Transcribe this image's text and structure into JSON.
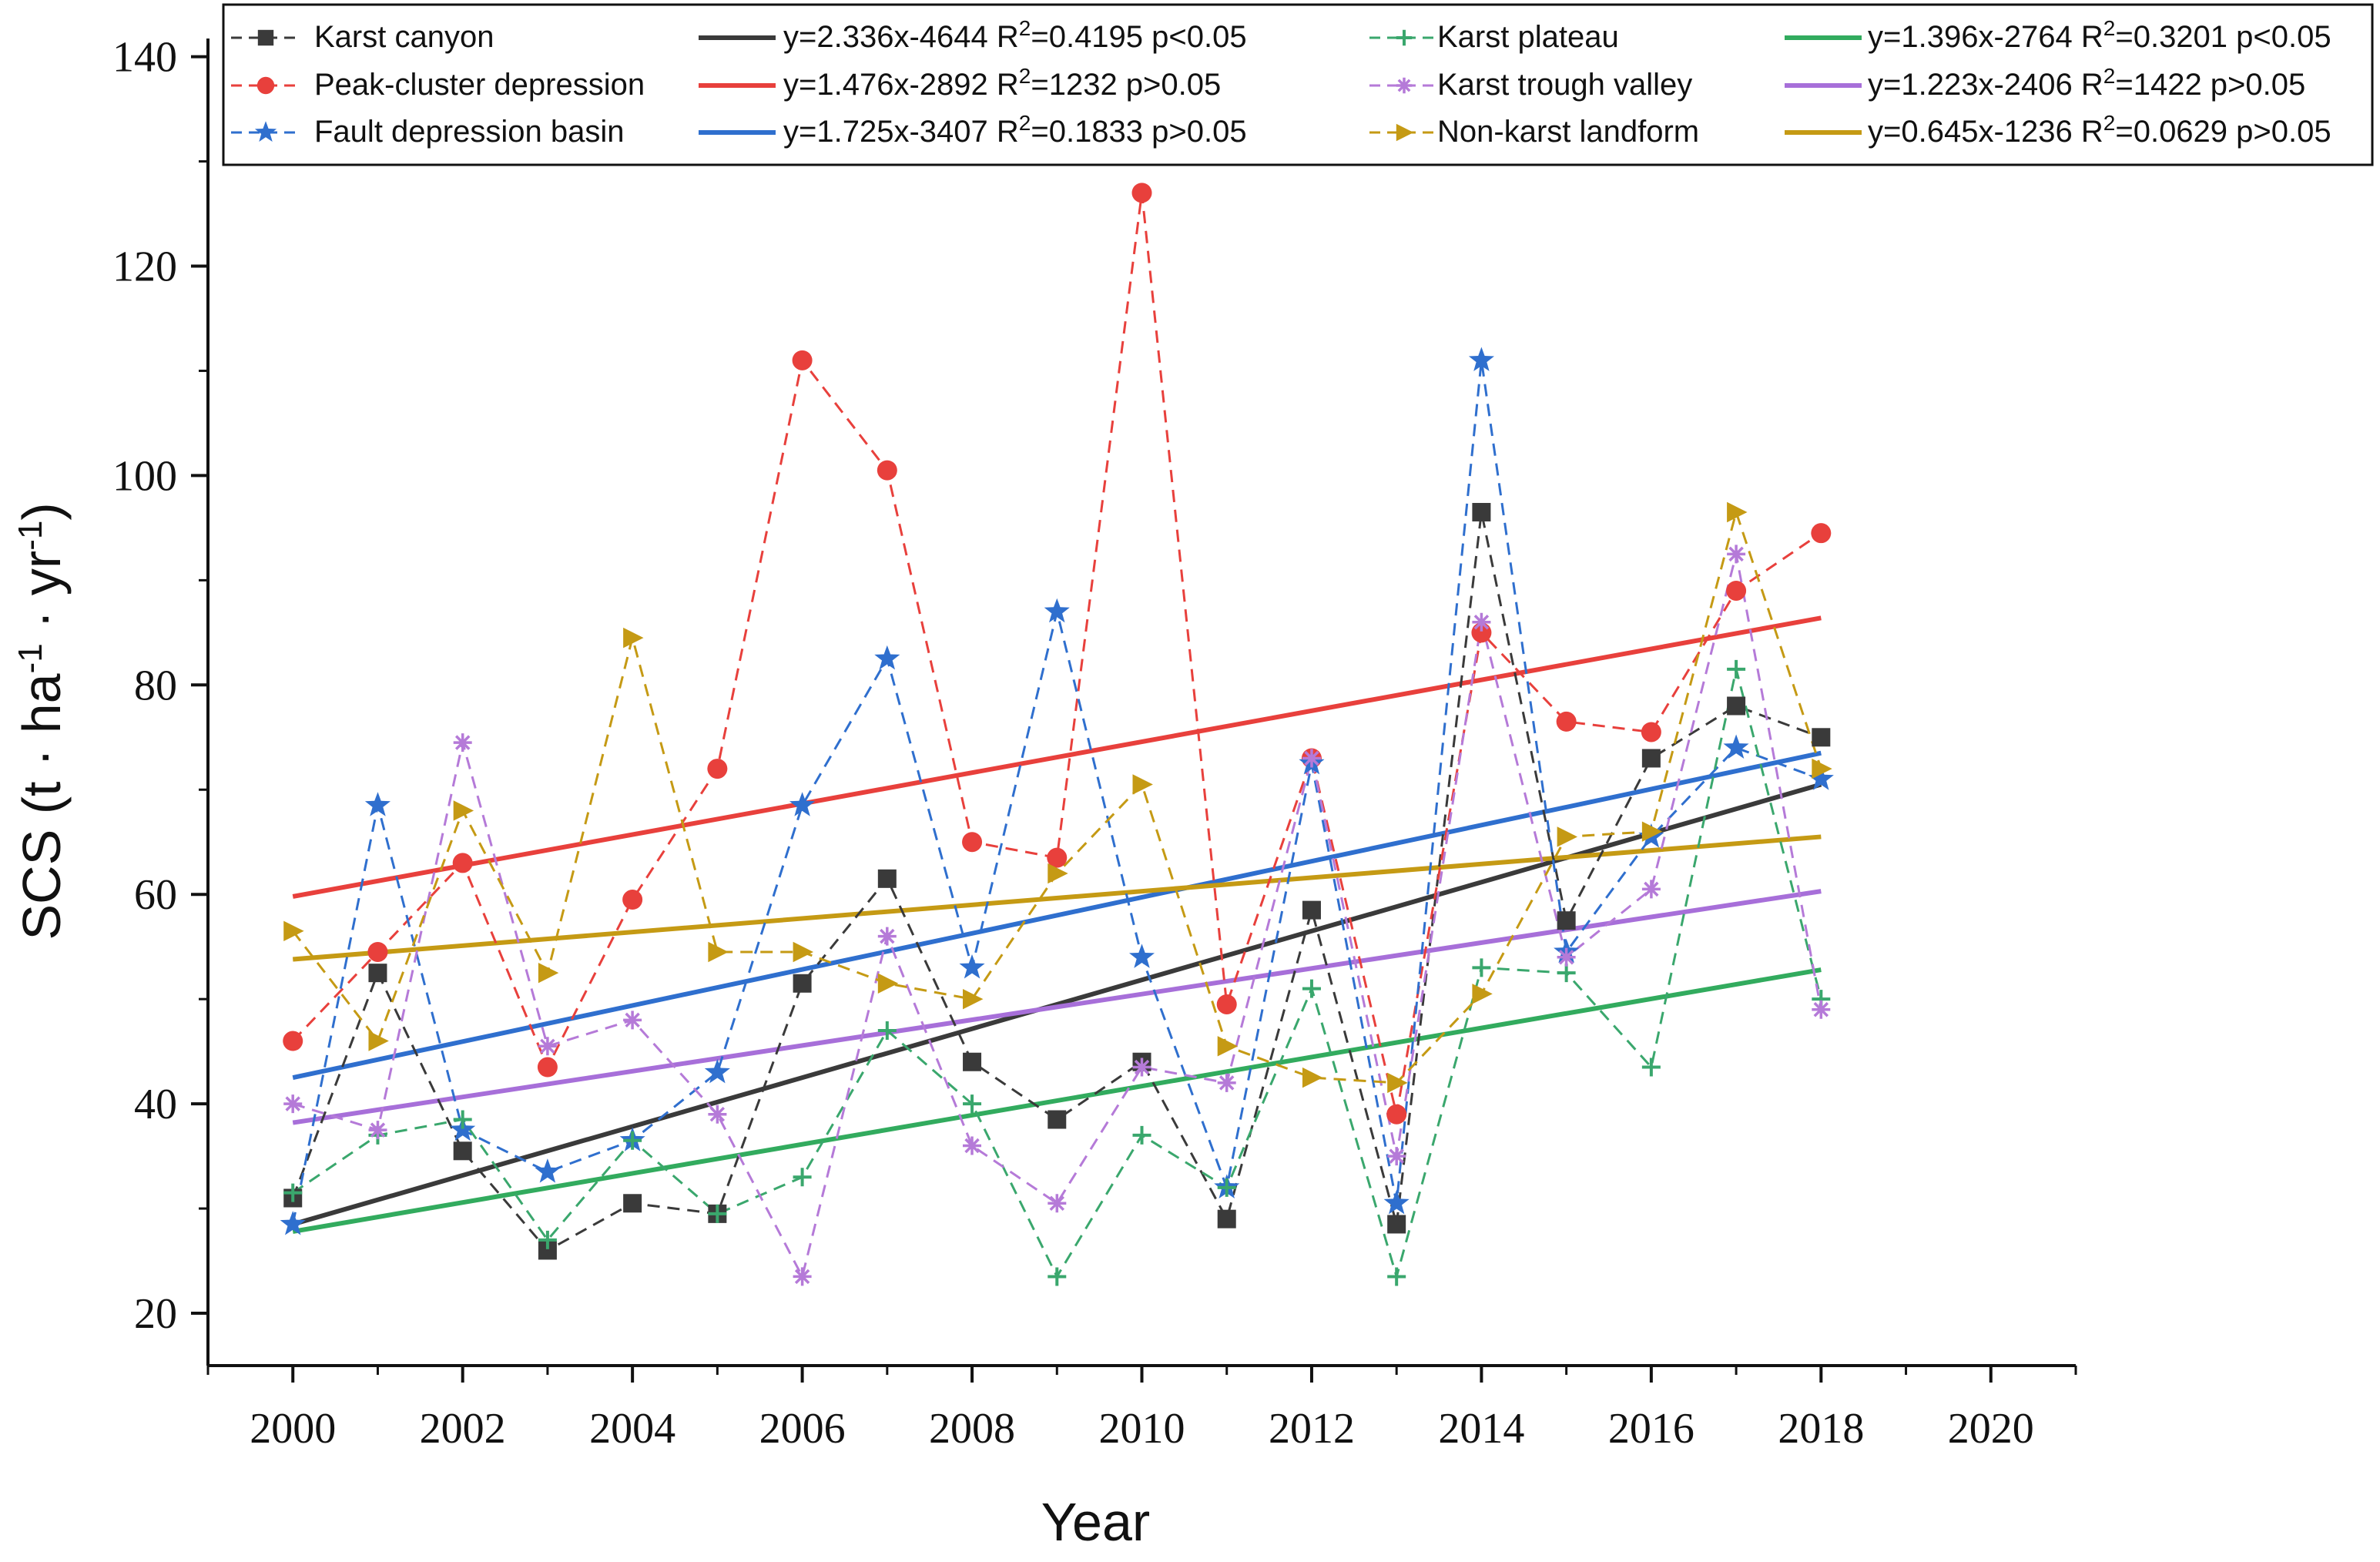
{
  "chart_data": {
    "type": "line",
    "title": "",
    "xlabel": "Year",
    "ylabel": "SCS (t · ha-1 · yr-1)",
    "ylabel_parts": {
      "main": "SCS (t · ha",
      "sup1": "-1",
      "mid": " · yr",
      "sup2": "-1",
      "end": ")"
    },
    "xlim": [
      1999,
      2021
    ],
    "ylim": [
      15,
      141
    ],
    "x_ticks": [
      "2000",
      "2002",
      "2004",
      "2006",
      "2008",
      "2010",
      "2012",
      "2014",
      "2016",
      "2018",
      "2020"
    ],
    "x_tick_values": [
      2000,
      2002,
      2004,
      2006,
      2008,
      2010,
      2012,
      2014,
      2016,
      2018,
      2020
    ],
    "y_ticks": [
      "20",
      "40",
      "60",
      "80",
      "100",
      "120",
      "140"
    ],
    "y_tick_values": [
      20,
      40,
      60,
      80,
      100,
      120,
      140
    ],
    "legend_position": "top",
    "x": [
      2000,
      2001,
      2002,
      2003,
      2004,
      2005,
      2006,
      2007,
      2008,
      2009,
      2010,
      2011,
      2012,
      2013,
      2014,
      2015,
      2016,
      2017,
      2018
    ],
    "series": [
      {
        "name": "Karst canyon",
        "color": "#3a3a3a",
        "marker": "square",
        "values": [
          31,
          52.5,
          35.5,
          26,
          30.5,
          29.5,
          51.5,
          61.5,
          44,
          38.5,
          44,
          29,
          58.5,
          28.5,
          96.5,
          57.5,
          73,
          78,
          75
        ],
        "fit": {
          "label": "y=2.336x-4644 R2=0.4195 p<0.05",
          "eq": "y=2.336x-4644 R",
          "r2": "=0.4195 p",
          "rel": "<",
          "p": "0.05",
          "start": 28.5,
          "end": 70.5
        }
      },
      {
        "name": "Peak-cluster depression",
        "color": "#e8403c",
        "marker": "circle",
        "values": [
          46,
          54.5,
          63,
          43.5,
          59.5,
          72,
          111,
          100.5,
          65,
          63.5,
          127,
          49.5,
          73,
          39,
          85,
          76.5,
          75.5,
          89,
          94.5
        ],
        "fit": {
          "label": "y=1.476x-2892 R2=1232 p>0.05",
          "eq": "y=1.476x-2892 R",
          "r2": "=1232 p",
          "rel": ">",
          "p": "0.05",
          "start": 59.8,
          "end": 86.4
        }
      },
      {
        "name": "Fault depression basin",
        "color": "#2f6fce",
        "marker": "star",
        "values": [
          28.5,
          68.5,
          37.5,
          33.5,
          36.5,
          43,
          68.5,
          82.5,
          53,
          87,
          54,
          32,
          72.5,
          30.5,
          111,
          54.5,
          65.5,
          74,
          71
        ],
        "fit": {
          "label": "y=1.725x-3407 R2=0.1833 p>0.05",
          "eq": "y=1.725x-3407 R",
          "r2": "=0.1833 p",
          "rel": ">",
          "p": "0.05",
          "start": 42.5,
          "end": 73.5
        }
      },
      {
        "name": "Karst plateau",
        "color": "#3aa76d",
        "marker": "plus",
        "values": [
          31.5,
          37,
          38.5,
          27,
          36.5,
          29.5,
          33,
          47,
          40,
          23.5,
          37,
          32,
          51,
          23.5,
          53,
          52.5,
          43.5,
          81.5,
          50
        ],
        "fit": {
          "label": "y=1.396x-2764 R2=0.3201 p<0.05",
          "eq": "y=1.396x-2764 R",
          "r2": "=0.3201 p",
          "rel": "<",
          "p": "0.05",
          "start": 27.8,
          "end": 52.8
        }
      },
      {
        "name": "Karst trough valley",
        "color": "#b57ad8",
        "marker": "asterisk",
        "values": [
          40,
          37.5,
          74.5,
          45.5,
          48,
          39,
          23.5,
          56,
          36,
          30.5,
          43.5,
          42,
          73,
          35,
          86,
          54,
          60.5,
          92.5,
          49
        ],
        "fit": {
          "label": "y=1.223x-2406 R2=1422 p>0.05",
          "eq": "y=1.223x-2406 R",
          "r2": "=1422 p",
          "rel": ">",
          "p": "0.05",
          "start": 38.2,
          "end": 60.3
        }
      },
      {
        "name": "Non-karst landform",
        "color": "#c59a14",
        "marker": "triangle-right",
        "values": [
          56.5,
          46,
          68,
          52.5,
          84.5,
          54.5,
          54.5,
          51.5,
          50,
          62,
          70.5,
          45.5,
          42.5,
          42,
          50.5,
          65.5,
          66,
          96.5,
          72
        ],
        "fit": {
          "label": "y=0.645x-1236 R2=0.0629 p>0.05",
          "eq": "y=0.645x-1236 R",
          "r2": "=0.0629 p",
          "rel": ">",
          "p": "0.05",
          "start": 53.8,
          "end": 65.5
        }
      }
    ],
    "fit_colors": [
      "#3a3a3a",
      "#e8403c",
      "#2f6fce",
      "#32ab5e",
      "#a76fd9",
      "#c59a14"
    ]
  }
}
